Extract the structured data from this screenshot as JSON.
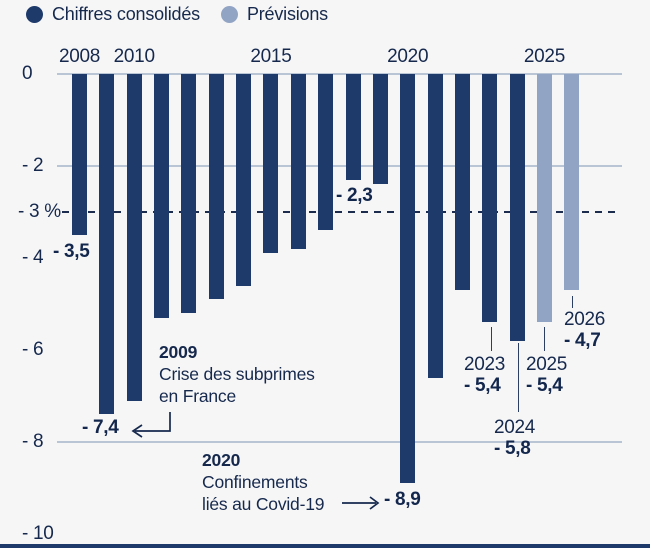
{
  "legend": {
    "items": [
      {
        "label": "Chiffres consolidés",
        "series": "consolidated",
        "color": "#1e3a6a"
      },
      {
        "label": "Prévisions",
        "series": "forecast",
        "color": "#92a4c4"
      }
    ]
  },
  "chart_data": {
    "type": "bar",
    "ylim": [
      -10,
      0
    ],
    "grid": "partial-horizontal",
    "legend_position": "top-left",
    "y_ticks": [
      {
        "value": 0,
        "label": "0"
      },
      {
        "value": -2,
        "label": "- 2"
      },
      {
        "value": -3,
        "label": "- 3 %"
      },
      {
        "value": -4,
        "label": "- 4"
      },
      {
        "value": -6,
        "label": "- 6"
      },
      {
        "value": -8,
        "label": "- 8"
      },
      {
        "value": -10,
        "label": "- 10"
      }
    ],
    "solid_gridlines": [
      0,
      -2,
      -8
    ],
    "dashed_gridline": -3,
    "x_top_labels": [
      "2008",
      "2010",
      "2015",
      "2020",
      "2025"
    ],
    "bars": [
      {
        "year": 2008,
        "value": -3.5,
        "series": "consolidated"
      },
      {
        "year": 2009,
        "value": -7.4,
        "series": "consolidated"
      },
      {
        "year": 2010,
        "value": -7.1,
        "series": "consolidated"
      },
      {
        "year": 2011,
        "value": -5.3,
        "series": "consolidated"
      },
      {
        "year": 2012,
        "value": -5.2,
        "series": "consolidated"
      },
      {
        "year": 2013,
        "value": -4.9,
        "series": "consolidated"
      },
      {
        "year": 2014,
        "value": -4.6,
        "series": "consolidated"
      },
      {
        "year": 2015,
        "value": -3.9,
        "series": "consolidated"
      },
      {
        "year": 2016,
        "value": -3.8,
        "series": "consolidated"
      },
      {
        "year": 2017,
        "value": -3.4,
        "series": "consolidated"
      },
      {
        "year": 2018,
        "value": -2.3,
        "series": "consolidated"
      },
      {
        "year": 2019,
        "value": -2.4,
        "series": "consolidated"
      },
      {
        "year": 2020,
        "value": -8.9,
        "series": "consolidated"
      },
      {
        "year": 2021,
        "value": -6.6,
        "series": "consolidated"
      },
      {
        "year": 2022,
        "value": -4.7,
        "series": "consolidated"
      },
      {
        "year": 2023,
        "value": -5.4,
        "series": "consolidated"
      },
      {
        "year": 2024,
        "value": -5.8,
        "series": "consolidated"
      },
      {
        "year": 2025,
        "value": -5.4,
        "series": "forecast"
      },
      {
        "year": 2026,
        "value": -4.7,
        "series": "forecast"
      }
    ],
    "value_labels": [
      {
        "year": 2008,
        "text": "- 3,5"
      },
      {
        "year": 2009,
        "text": "- 7,4"
      },
      {
        "year": 2018,
        "text": "- 2,3"
      },
      {
        "year": 2020,
        "text": "- 8,9"
      }
    ],
    "callouts": [
      {
        "year_label": "2023",
        "value_label": "- 5,4"
      },
      {
        "year_label": "2024",
        "value_label": "- 5,8"
      },
      {
        "year_label": "2025",
        "value_label": "- 5,4"
      },
      {
        "year_label": "2026",
        "value_label": "- 4,7"
      }
    ],
    "annotations": [
      {
        "year": "2009",
        "lines": [
          "Crise des subprimes",
          "en France"
        ],
        "arrow": "elbow-left"
      },
      {
        "year": "2020",
        "lines": [
          "Confinements",
          "liés au Covid-19"
        ],
        "arrow": "right"
      }
    ]
  },
  "colors": {
    "consolidated": "#1e3a6a",
    "forecast": "#92a4c4",
    "text": "#16294d",
    "gridline": "#b9c4d4",
    "dashed_line": "#1b2c4f",
    "background": "#f6f6f7"
  }
}
